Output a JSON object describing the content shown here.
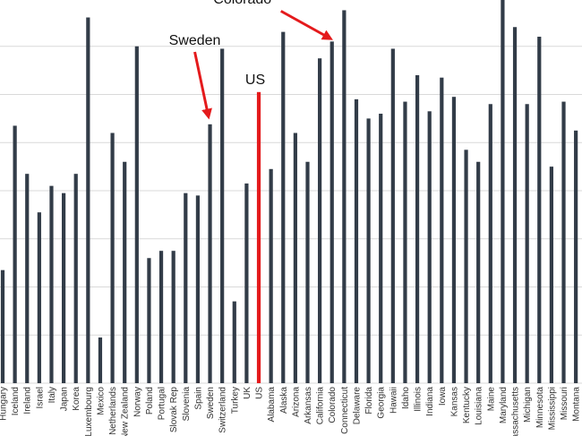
{
  "chart_data": {
    "type": "bar",
    "title": "",
    "xlabel": "",
    "ylabel": "",
    "ylim": [
      0,
      8
    ],
    "grid": true,
    "highlight_color": "#e41a1c",
    "bar_color": "#323c48",
    "categories": [
      "Hungary",
      "Iceland",
      "Ireland",
      "Israel",
      "Italy",
      "Japan",
      "Korea",
      "Luxembourg",
      "Mexico",
      "Netherlands",
      "New Zealand",
      "Norway",
      "Poland",
      "Portugal",
      "Slovak Rep",
      "Slovenia",
      "Spain",
      "Sweden",
      "Switzerland",
      "Turkey",
      "UK",
      "US",
      "Alabama",
      "Alaska",
      "Arizona",
      "Arkansas",
      "California",
      "Colorado",
      "Connecticut",
      "Delaware",
      "Florida",
      "Georgia",
      "Hawaii",
      "Idaho",
      "Illinois",
      "Indiana",
      "Iowa",
      "Kansas",
      "Kentucky",
      "Louisiana",
      "Maine",
      "Maryland",
      "Massachusetts",
      "Michigan",
      "Minnesota",
      "Mississippi",
      "Missouri",
      "Montana"
    ],
    "values": [
      2.35,
      5.35,
      4.35,
      3.55,
      4.1,
      3.95,
      4.35,
      7.6,
      0.95,
      5.2,
      4.6,
      7.0,
      2.6,
      2.75,
      2.75,
      3.95,
      3.9,
      5.38,
      6.95,
      1.7,
      4.15,
      6.05,
      4.45,
      7.3,
      5.2,
      4.6,
      6.75,
      7.1,
      7.75,
      5.9,
      5.5,
      5.6,
      6.95,
      5.85,
      6.4,
      5.65,
      6.35,
      5.95,
      4.85,
      4.6,
      5.8,
      8.05,
      7.4,
      5.8,
      7.2,
      4.5,
      5.85,
      5.25
    ],
    "highlighted": [
      "US"
    ],
    "annotations": [
      {
        "label": "Colorado",
        "target": "Colorado"
      },
      {
        "label": "Sweden",
        "target": "Sweden"
      },
      {
        "label": "US",
        "target": "US"
      }
    ]
  }
}
